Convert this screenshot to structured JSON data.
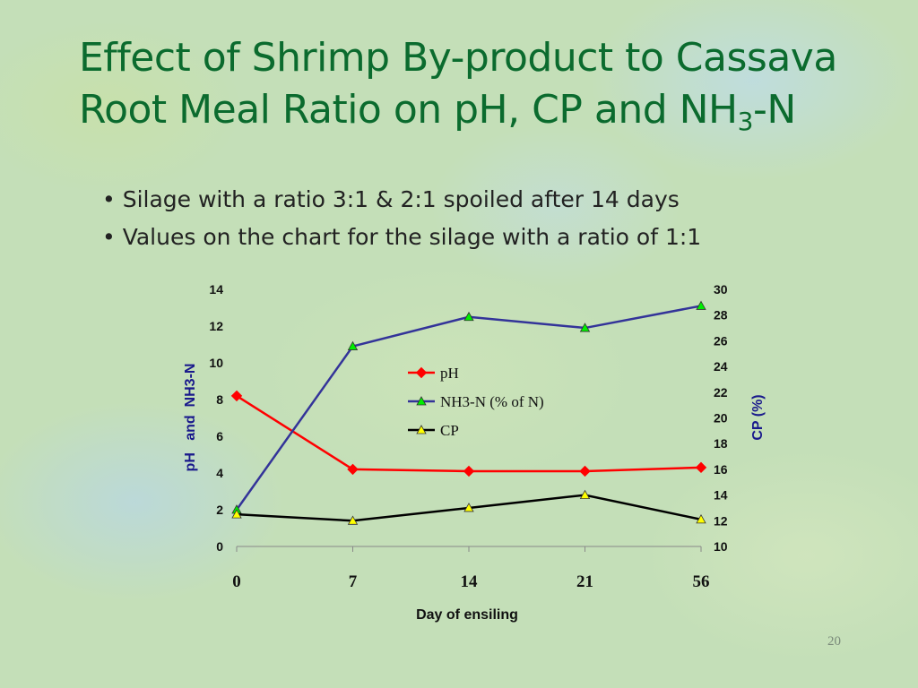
{
  "slide": {
    "title_line1": "Effect of Shrimp By-product to Cassava",
    "title_line2_main": "Root Meal Ratio on pH, CP and NH",
    "title_line2_sub": "3",
    "title_line2_end": "-N",
    "bullets": [
      "Silage with a ratio 3:1 & 2:1 spoiled after 14 days",
      "Values on the chart for the silage with a ratio of 1:1"
    ],
    "slide_number": "20"
  },
  "chart_data": {
    "type": "line",
    "categories": [
      "0",
      "7",
      "14",
      "21",
      "56"
    ],
    "xlabel": "Day of ensiling",
    "ylabel_left": "pH   and  NH3-N",
    "ylabel_right": "CP (%)",
    "ylim_left": [
      0,
      14
    ],
    "yticks_left": [
      0,
      2,
      4,
      6,
      8,
      10,
      12,
      14
    ],
    "ylim_right": [
      10,
      30
    ],
    "yticks_right": [
      10,
      12,
      14,
      16,
      18,
      20,
      22,
      24,
      26,
      28,
      30
    ],
    "grid": false,
    "legend_position": "center",
    "series": [
      {
        "name": "pH",
        "axis": "left",
        "color": "#ff0000",
        "marker": "diamond",
        "marker_color": "#ff0000",
        "values": [
          8.2,
          4.2,
          4.1,
          4.1,
          4.3
        ]
      },
      {
        "name": "NH3-N (% of N)",
        "axis": "left",
        "color": "#333399",
        "marker": "triangle",
        "marker_color": "#00ee00",
        "values": [
          2.0,
          10.9,
          12.5,
          11.9,
          13.1
        ]
      },
      {
        "name": "CP",
        "axis": "right",
        "color": "#000000",
        "marker": "triangle",
        "marker_color": "#ffff00",
        "values": [
          12.5,
          12.0,
          13.0,
          14.0,
          12.1
        ]
      }
    ]
  }
}
